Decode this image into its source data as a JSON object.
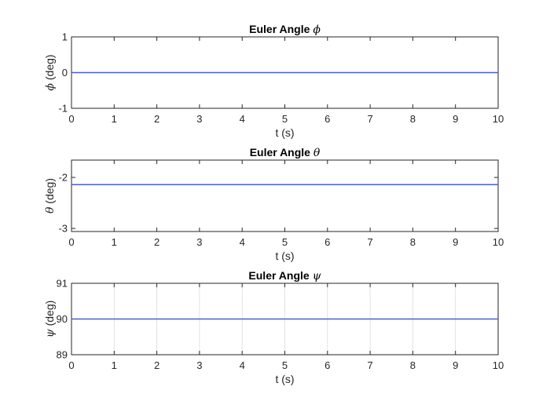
{
  "chart_data": [
    {
      "type": "line",
      "title": "Euler Angle ϕ",
      "title_text": "Euler Angle ",
      "title_symbol": "ϕ",
      "xlabel": "t (s)",
      "ylabel": "ϕ (deg)",
      "ylabel_symbol": "ϕ",
      "ylabel_text": " (deg)",
      "xlim": [
        0,
        10
      ],
      "ylim": [
        -1,
        1
      ],
      "xticks": [
        0,
        1,
        2,
        3,
        4,
        5,
        6,
        7,
        8,
        9,
        10
      ],
      "yticks": [
        -1,
        0,
        1
      ],
      "ytick_labels": [
        "-1",
        "0",
        "1"
      ],
      "grid": false,
      "series": [
        {
          "x": [
            0,
            10
          ],
          "y": [
            0,
            0
          ],
          "color": "#4a5fd1"
        }
      ]
    },
    {
      "type": "line",
      "title": "Euler Angle θ",
      "title_text": "Euler Angle ",
      "title_symbol": "θ",
      "xlabel": "t (s)",
      "ylabel": "θ (deg)",
      "ylabel_symbol": "θ",
      "ylabel_text": " (deg)",
      "xlim": [
        0,
        10
      ],
      "ylim": [
        -3.06,
        -1.66
      ],
      "xticks": [
        0,
        1,
        2,
        3,
        4,
        5,
        6,
        7,
        8,
        9,
        10
      ],
      "yticks": [
        -3,
        -2
      ],
      "ytick_labels": [
        "-3",
        "-2"
      ],
      "grid": false,
      "series": [
        {
          "x": [
            0,
            10
          ],
          "y": [
            -2.14,
            -2.14
          ],
          "color": "#4a5fd1"
        }
      ]
    },
    {
      "type": "line",
      "title": "Euler Angle ψ",
      "title_text": "Euler Angle ",
      "title_symbol": "ψ",
      "xlabel": "t (s)",
      "ylabel": "ψ (deg)",
      "ylabel_symbol": "ψ",
      "ylabel_text": " (deg)",
      "xlim": [
        0,
        10
      ],
      "ylim": [
        89,
        91
      ],
      "xticks": [
        0,
        1,
        2,
        3,
        4,
        5,
        6,
        7,
        8,
        9,
        10
      ],
      "yticks": [
        89,
        90,
        91
      ],
      "ytick_labels": [
        "89",
        "90",
        "91"
      ],
      "grid": true,
      "series": [
        {
          "x": [
            0,
            10
          ],
          "y": [
            90,
            90
          ],
          "color": "#4a5fd1"
        }
      ]
    }
  ]
}
